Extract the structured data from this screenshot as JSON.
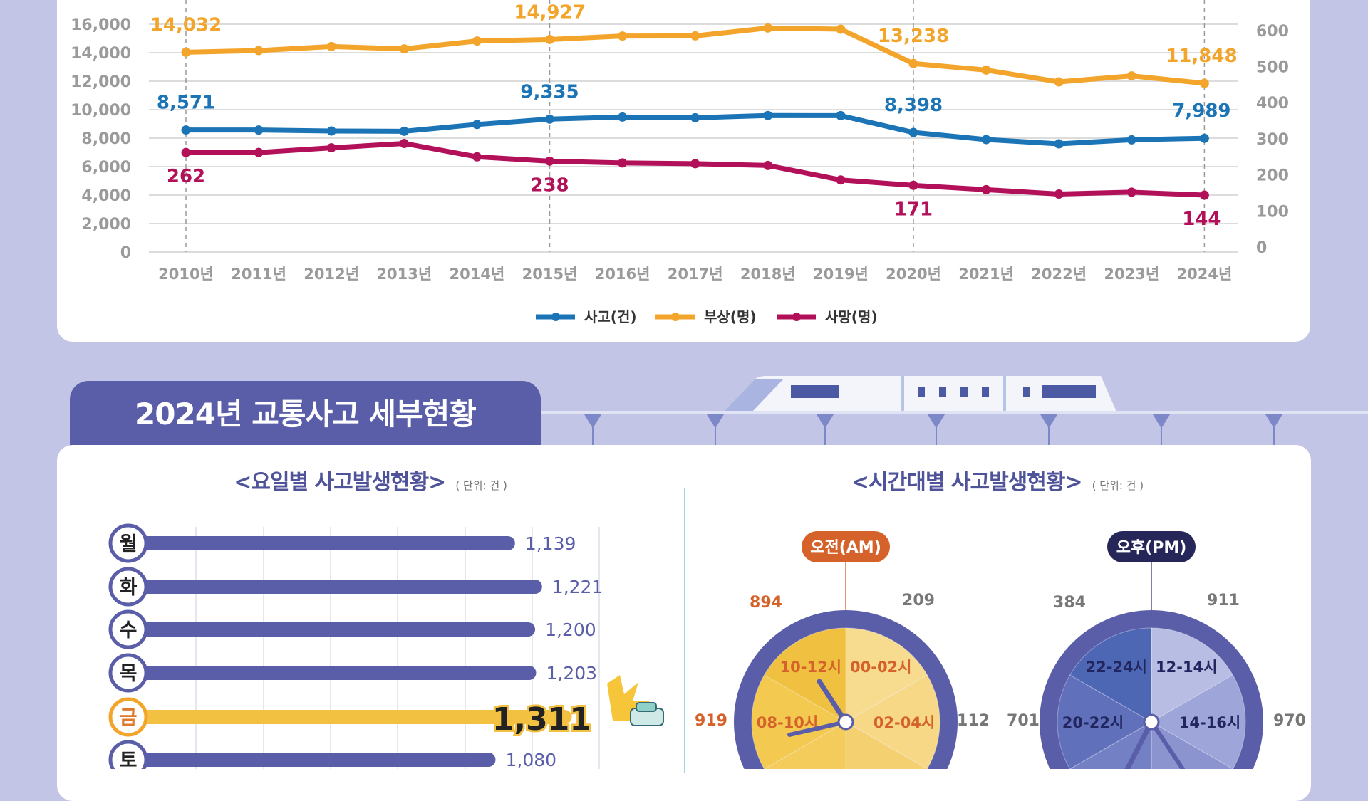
{
  "colors": {
    "background": "#c3c5e6",
    "accidents": "#1b74b6",
    "injuries": "#f3a52b",
    "deaths": "#b3105a",
    "bar": "#5a5ea9",
    "bar_highlight": "#f3c142",
    "am_pill": "#d4622a",
    "pm_pill": "#262659",
    "clock_ring": "#5a5ea9"
  },
  "section": {
    "title": "2024년 교통사고 세부현황"
  },
  "chart_data": [
    {
      "type": "line",
      "x": [
        "2010년",
        "2011년",
        "2012년",
        "2013년",
        "2014년",
        "2015년",
        "2016년",
        "2017년",
        "2018년",
        "2019년",
        "2020년",
        "2021년",
        "2022년",
        "2023년",
        "2024년"
      ],
      "left_axis": {
        "ticks": [
          "0",
          "2,000",
          "4,000",
          "6,000",
          "8,000",
          "10,000",
          "12,000",
          "14,000",
          "16,000"
        ],
        "ylim": [
          0,
          18000
        ]
      },
      "right_axis": {
        "ticks": [
          "0",
          "100",
          "200",
          "300",
          "400",
          "500",
          "600"
        ],
        "ylim": [
          0,
          700
        ]
      },
      "grid": true,
      "legend_placement": "bottom-center",
      "series": [
        {
          "name": "사고(건)",
          "axis": "left",
          "color": "#1b74b6",
          "values": [
            8571,
            8570,
            8500,
            8480,
            8960,
            9335,
            9480,
            9430,
            9590,
            9580,
            8398,
            7900,
            7600,
            7880,
            7989
          ],
          "labels": {
            "0": "8,571",
            "5": "9,335",
            "10": "8,398",
            "14": "7,989"
          }
        },
        {
          "name": "부상(명)",
          "axis": "left",
          "color": "#f3a52b",
          "values": [
            14032,
            14150,
            14430,
            14270,
            14820,
            14927,
            15170,
            15180,
            15730,
            15650,
            13238,
            12780,
            11950,
            12370,
            11848
          ],
          "labels": {
            "0": "14,032",
            "5": "14,927",
            "10": "13,238",
            "14": "11,848"
          }
        },
        {
          "name": "사망(명)",
          "axis": "right",
          "color": "#b3105a",
          "values": [
            262,
            262,
            275,
            287,
            250,
            238,
            233,
            231,
            226,
            186,
            171,
            159,
            147,
            152,
            144
          ],
          "labels": {
            "0": "262",
            "5": "238",
            "10": "171",
            "14": "144"
          }
        }
      ],
      "highlight_years": [
        "2010년",
        "2015년",
        "2020년",
        "2024년"
      ]
    },
    {
      "type": "bar",
      "orientation": "horizontal",
      "title": "<요일별 사고발생현황>",
      "unit": "( 단위: 건 )",
      "categories": [
        "월",
        "화",
        "수",
        "목",
        "금",
        "토"
      ],
      "values": [
        1139,
        1221,
        1200,
        1203,
        1311,
        1080
      ],
      "value_labels": [
        "1,139",
        "1,221",
        "1,200",
        "1,203",
        "1,311",
        "1,080"
      ],
      "highlight": "금"
    },
    {
      "type": "pie",
      "title": "<시간대별 사고발생현황>",
      "unit": "( 단위: 건 )",
      "clocks": [
        {
          "label": "오전(AM)",
          "segments": [
            {
              "name": "00-02시",
              "value": 209,
              "value_label": "209"
            },
            {
              "name": "02-04시",
              "value": 112,
              "value_label": "112"
            },
            {
              "name": "08-10시",
              "value": 919,
              "value_label": "919",
              "highlight": true
            },
            {
              "name": "10-12시",
              "value": 894,
              "value_label": "894",
              "highlight": true
            }
          ]
        },
        {
          "label": "오후(PM)",
          "segments": [
            {
              "name": "12-14시",
              "value": 911,
              "value_label": "911"
            },
            {
              "name": "14-16시",
              "value": 970,
              "value_label": "970"
            },
            {
              "name": "20-22시",
              "value": 701,
              "value_label": "701"
            },
            {
              "name": "22-24시",
              "value": 384,
              "value_label": "384"
            }
          ]
        }
      ]
    }
  ]
}
